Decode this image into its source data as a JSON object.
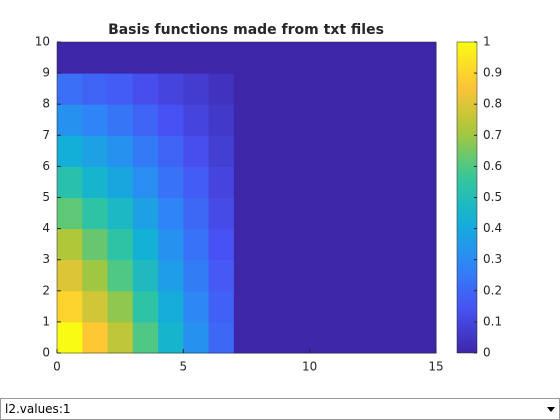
{
  "chart_data": {
    "type": "heatmap",
    "title": "Basis functions made from txt files",
    "z": [
      [
        1,
        0.87,
        0.75,
        0.6,
        0.45,
        0.32,
        0.2,
        0,
        0,
        0,
        0,
        0,
        0,
        0,
        0
      ],
      [
        0.9,
        0.78,
        0.68,
        0.54,
        0.41,
        0.29,
        0.18,
        0,
        0,
        0,
        0,
        0,
        0,
        0,
        0
      ],
      [
        0.8,
        0.7,
        0.6,
        0.48,
        0.36,
        0.26,
        0.16,
        0,
        0,
        0,
        0,
        0,
        0,
        0,
        0
      ],
      [
        0.72,
        0.63,
        0.54,
        0.43,
        0.32,
        0.23,
        0.14,
        0,
        0,
        0,
        0,
        0,
        0,
        0,
        0
      ],
      [
        0.62,
        0.54,
        0.47,
        0.37,
        0.28,
        0.2,
        0.12,
        0,
        0,
        0,
        0,
        0,
        0,
        0,
        0
      ],
      [
        0.52,
        0.45,
        0.39,
        0.31,
        0.23,
        0.17,
        0.1,
        0,
        0,
        0,
        0,
        0,
        0,
        0,
        0
      ],
      [
        0.42,
        0.37,
        0.32,
        0.25,
        0.19,
        0.13,
        0.08,
        0,
        0,
        0,
        0,
        0,
        0,
        0,
        0
      ],
      [
        0.32,
        0.28,
        0.24,
        0.19,
        0.14,
        0.1,
        0.06,
        0,
        0,
        0,
        0,
        0,
        0,
        0,
        0
      ],
      [
        0.22,
        0.19,
        0.17,
        0.13,
        0.1,
        0.07,
        0.04,
        0,
        0,
        0,
        0,
        0,
        0,
        0,
        0
      ],
      [
        0,
        0,
        0,
        0,
        0,
        0,
        0,
        0,
        0,
        0,
        0,
        0,
        0,
        0,
        0
      ]
    ],
    "xlim": [
      0,
      15
    ],
    "xticks": [
      0,
      5,
      10,
      15
    ],
    "ylim": [
      0,
      10
    ],
    "yticks": [
      0,
      1,
      2,
      3,
      4,
      5,
      6,
      7,
      8,
      9,
      10
    ],
    "colormap": "parula",
    "clim": [
      0,
      1
    ],
    "cticks": [
      0,
      0.1,
      0.2,
      0.3,
      0.4,
      0.5,
      0.6,
      0.7,
      0.8,
      0.9,
      1
    ]
  },
  "dropdown": {
    "selected": "l2.values:1"
  }
}
